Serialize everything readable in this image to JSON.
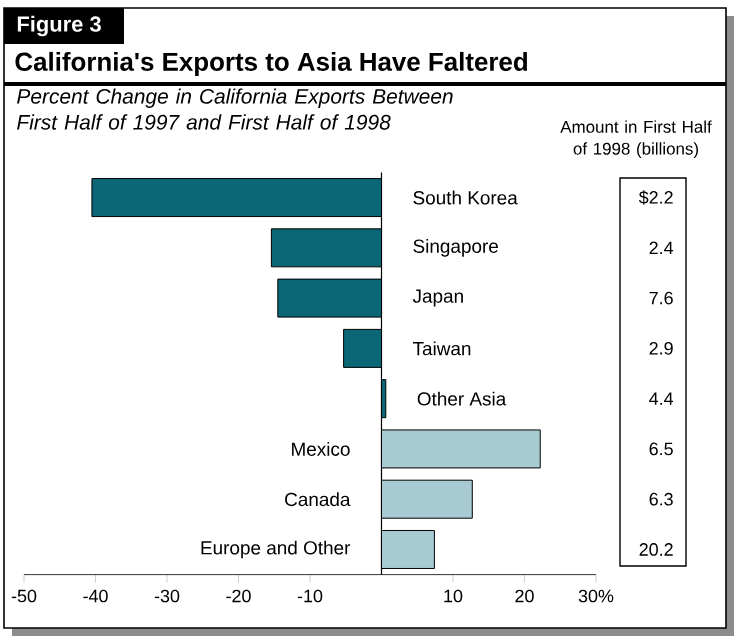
{
  "chart_data": {
    "type": "bar",
    "orientation": "horizontal",
    "title": "California's Exports to Asia Have Faltered",
    "subtitle": "Percent Change in California Exports Between First Half of 1997 and First Half of 1998",
    "categories": [
      "South Korea",
      "Singapore",
      "Japan",
      "Taiwan",
      "Other Asia",
      "Mexico",
      "Canada",
      "Europe and Other"
    ],
    "values": [
      -40.5,
      -15.4,
      -14.5,
      -5.3,
      0.6,
      22.2,
      12.7,
      7.4
    ],
    "colors": [
      "#0b6675",
      "#0b6675",
      "#0b6675",
      "#0b6675",
      "#0b6675",
      "#a8cbd3",
      "#a8cbd3",
      "#a8cbd3"
    ],
    "xlim": [
      -50,
      30
    ],
    "xticks": [
      -50,
      -40,
      -30,
      -20,
      -10,
      10,
      20,
      {
        "value": 30,
        "label": "30%"
      }
    ],
    "grid": false,
    "annotations": [
      "Figure 3",
      "Amount in First Half of 1998 (billions)",
      "$2.2",
      "2.4",
      "7.6",
      "2.9",
      "4.4",
      "6.5",
      "6.3",
      "20.2"
    ]
  }
}
